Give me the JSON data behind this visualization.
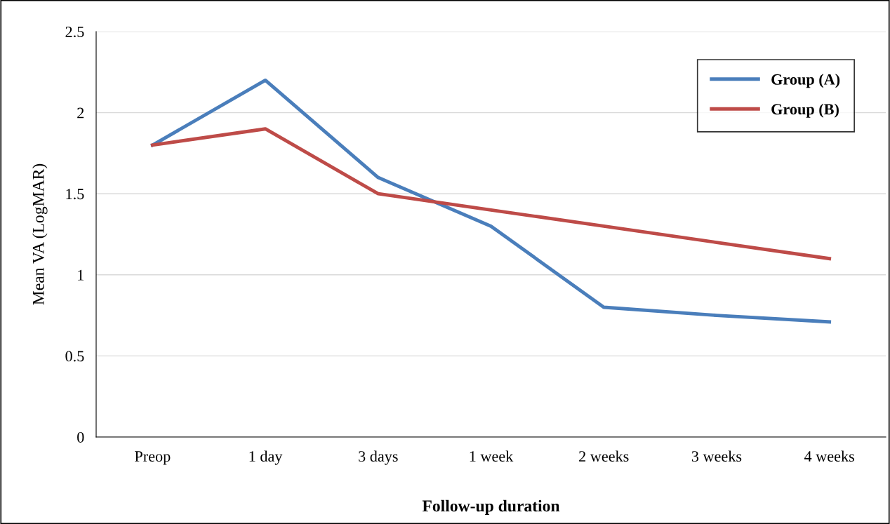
{
  "chart_data": {
    "type": "line",
    "xlabel": "Follow-up duration",
    "ylabel": "Mean VA (LogMAR)",
    "categories": [
      "Preop",
      "1 day",
      "3 days",
      "1 week",
      "2 weeks",
      "3 weeks",
      "4 weeks"
    ],
    "series": [
      {
        "name": "Group (A)",
        "color": "#4a7ebb",
        "values": [
          1.8,
          2.2,
          1.6,
          1.3,
          0.8,
          0.75,
          0.71
        ]
      },
      {
        "name": "Group (B)",
        "color": "#be4b48",
        "values": [
          1.8,
          1.9,
          1.5,
          1.4,
          1.3,
          1.2,
          1.1
        ]
      }
    ],
    "ylim": [
      0,
      2.5
    ],
    "yticks": [
      0,
      0.5,
      1,
      1.5,
      2,
      2.5
    ],
    "grid": "y",
    "legend": "top right",
    "marker": "none",
    "line_style": "solid"
  }
}
